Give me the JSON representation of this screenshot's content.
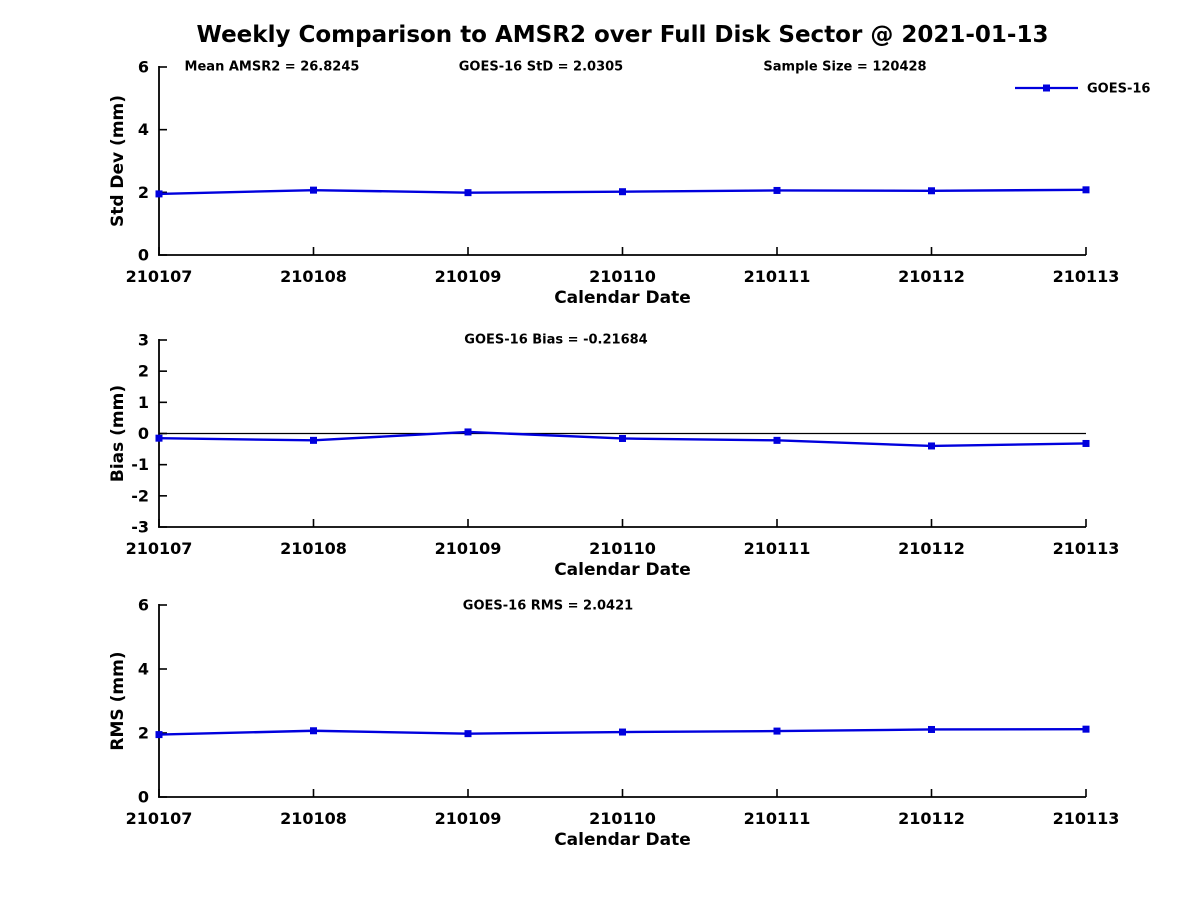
{
  "title": "Weekly Comparison to AMSR2 over Full Disk Sector @ 2021-01-13",
  "legend": {
    "label": "GOES-16",
    "color": "#0000dd",
    "marker": "square"
  },
  "chart_data": [
    {
      "type": "line",
      "panel": "std-dev",
      "series_name": "GOES-16",
      "annotations": [
        "Mean AMSR2 = 26.8245",
        "GOES-16 StD = 2.0305",
        "Sample Size = 120428"
      ],
      "categories": [
        "210107",
        "210108",
        "210109",
        "210110",
        "210111",
        "210112",
        "210113"
      ],
      "values": [
        1.95,
        2.07,
        1.99,
        2.02,
        2.06,
        2.05,
        2.08
      ],
      "xlabel": "Calendar Date",
      "ylabel": "Std Dev (mm)",
      "ylim": [
        0,
        6
      ],
      "yticks": [
        0,
        2,
        4,
        6
      ],
      "zero_line": false,
      "grid": false,
      "legend_position": "upper-right-outside"
    },
    {
      "type": "line",
      "panel": "bias",
      "series_name": "GOES-16",
      "annotations": [
        "GOES-16 Bias  = -0.21684"
      ],
      "categories": [
        "210107",
        "210108",
        "210109",
        "210110",
        "210111",
        "210112",
        "210113"
      ],
      "values": [
        -0.15,
        -0.22,
        0.05,
        -0.16,
        -0.22,
        -0.4,
        -0.32
      ],
      "xlabel": "Calendar Date",
      "ylabel": "Bias (mm)",
      "ylim": [
        -3,
        3
      ],
      "yticks": [
        -3,
        -2,
        -1,
        0,
        1,
        2,
        3
      ],
      "zero_line": true,
      "grid": false
    },
    {
      "type": "line",
      "panel": "rms",
      "series_name": "GOES-16",
      "annotations": [
        "GOES-16 RMS = 2.0421"
      ],
      "categories": [
        "210107",
        "210108",
        "210109",
        "210110",
        "210111",
        "210112",
        "210113"
      ],
      "values": [
        1.95,
        2.07,
        1.98,
        2.03,
        2.06,
        2.11,
        2.12
      ],
      "xlabel": "Calendar Date",
      "ylabel": "RMS (mm)",
      "ylim": [
        0,
        6
      ],
      "yticks": [
        0,
        2,
        4,
        6
      ],
      "zero_line": false,
      "grid": false
    }
  ]
}
